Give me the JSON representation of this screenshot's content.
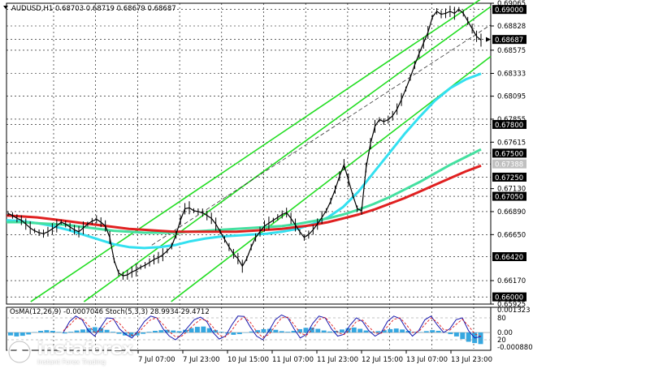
{
  "chart_data": [
    {
      "type": "line",
      "title": "AUDUSD,H1  0.68703 0.68719 0.68679 0.68687",
      "ylim": [
        0.65925,
        0.69065
      ],
      "price_ticks": [
        "0.69065",
        "0.68828",
        "0.68575",
        "0.68333",
        "0.68095",
        "0.67855",
        "0.67615",
        "0.67130",
        "0.66890",
        "0.66650",
        "0.66170",
        "0.65925"
      ],
      "level_labels": [
        {
          "text": "0.69000",
          "value": 0.69,
          "color": "#000000"
        },
        {
          "text": "0.68687",
          "value": 0.68687,
          "color": "#000000"
        },
        {
          "text": "0.67800",
          "value": 0.678,
          "color": "#000000"
        },
        {
          "text": "0.67500",
          "value": 0.675,
          "color": "#000000"
        },
        {
          "text": "0.67388",
          "value": 0.67388,
          "color": "#c0c0c0"
        },
        {
          "text": "0.67250",
          "value": 0.6725,
          "color": "#000000"
        },
        {
          "text": "0.67050",
          "value": 0.6705,
          "color": "#000000"
        },
        {
          "text": "0.66420",
          "value": 0.6642,
          "color": "#000000"
        },
        {
          "text": "0.66000",
          "value": 0.66,
          "color": "#000000"
        }
      ],
      "x_labels": [
        "7 Jul 07:00",
        "7 Jul 23:00",
        "10 Jul 15:00",
        "11 Jul 07:00",
        "11 Jul 23:00",
        "12 Jul 15:00",
        "13 Jul 07:00",
        "13 Jul 23:00"
      ],
      "price_series": [
        0.6687,
        0.6685,
        0.6682,
        0.668,
        0.6676,
        0.6672,
        0.6669,
        0.6667,
        0.6666,
        0.6668,
        0.6671,
        0.6674,
        0.6678,
        0.6676,
        0.6673,
        0.667,
        0.6668,
        0.6672,
        0.6676,
        0.6679,
        0.6681,
        0.6678,
        0.6674,
        0.6662,
        0.6638,
        0.6625,
        0.6622,
        0.6623,
        0.6626,
        0.6628,
        0.6631,
        0.6633,
        0.6636,
        0.6639,
        0.6641,
        0.6644,
        0.6648,
        0.6653,
        0.6665,
        0.668,
        0.6692,
        0.6693,
        0.669,
        0.6689,
        0.6688,
        0.6685,
        0.6682,
        0.6676,
        0.6668,
        0.666,
        0.6652,
        0.6645,
        0.664,
        0.6632,
        0.664,
        0.6652,
        0.6662,
        0.6668,
        0.6674,
        0.6677,
        0.668,
        0.6683,
        0.6686,
        0.6688,
        0.6682,
        0.6675,
        0.6668,
        0.6662,
        0.6665,
        0.667,
        0.6676,
        0.6683,
        0.669,
        0.67,
        0.6712,
        0.6726,
        0.6738,
        0.6722,
        0.6706,
        0.6692,
        0.669,
        0.6735,
        0.676,
        0.6778,
        0.6785,
        0.6783,
        0.6785,
        0.6789,
        0.6796,
        0.6806,
        0.6817,
        0.6829,
        0.6842,
        0.6854,
        0.6865,
        0.6876,
        0.6892,
        0.6898,
        0.6895,
        0.6896,
        0.6898,
        0.6896,
        0.69,
        0.6896,
        0.6888,
        0.688,
        0.6872,
        0.6868
      ],
      "ma_series": [
        {
          "color": "#33e0f0",
          "values": [
            0.668,
            0.6679,
            0.6677,
            0.6674,
            0.667,
            0.6665,
            0.666,
            0.6655,
            0.6652,
            0.6651,
            0.6652,
            0.6654,
            0.6658,
            0.6661,
            0.6663,
            0.6664,
            0.6665,
            0.6666,
            0.6668,
            0.6671,
            0.6676,
            0.6683,
            0.6694,
            0.671,
            0.673,
            0.675,
            0.677,
            0.6788,
            0.6805,
            0.6818,
            0.6827,
            0.6833
          ]
        },
        {
          "color": "#44e0a0",
          "values": [
            0.6678,
            0.6678,
            0.6677,
            0.6676,
            0.6675,
            0.6673,
            0.6671,
            0.6669,
            0.6668,
            0.6667,
            0.6667,
            0.6667,
            0.6668,
            0.6669,
            0.667,
            0.6671,
            0.6672,
            0.6673,
            0.6674,
            0.6676,
            0.6679,
            0.6682,
            0.6686,
            0.6691,
            0.6697,
            0.6704,
            0.6712,
            0.672,
            0.6729,
            0.6738,
            0.6746,
            0.6754
          ]
        },
        {
          "color": "#e02020",
          "values": [
            0.6685,
            0.6684,
            0.6683,
            0.6681,
            0.6679,
            0.6677,
            0.6675,
            0.6673,
            0.6671,
            0.667,
            0.6669,
            0.6668,
            0.6668,
            0.6668,
            0.6668,
            0.6668,
            0.6669,
            0.667,
            0.6671,
            0.6673,
            0.6675,
            0.6678,
            0.6682,
            0.6686,
            0.6691,
            0.6697,
            0.6703,
            0.671,
            0.6717,
            0.6724,
            0.6731,
            0.6737
          ]
        }
      ],
      "channel_lines": [
        {
          "color": "#22dd22",
          "from": [
            0.05,
            0.6595
          ],
          "to": [
            0.98,
            0.6911
          ]
        },
        {
          "color": "#22dd22",
          "from": [
            0.16,
            0.6595
          ],
          "to": [
            1.0,
            0.6903
          ]
        },
        {
          "color": "#22dd22",
          "from": [
            0.34,
            0.6595
          ],
          "to": [
            1.0,
            0.6851
          ]
        }
      ],
      "grid": true
    },
    {
      "type": "bar",
      "title": "OsMA(12,26,9) -0.0007046  Stoch(5,3,3) 28.9934 29.4712",
      "ylim": [
        -0.00088,
        0.001323
      ],
      "axis_labels": [
        "0.001323",
        "80",
        "0.00",
        "20",
        "-0.000880"
      ],
      "osma_values": [
        -0.00018,
        -0.00024,
        -0.0002,
        -0.00012,
        2e-05,
        0.0001,
        0.00014,
        0.0001,
        3e-05,
        -6e-05,
        4e-05,
        0.00012,
        0.00018,
        0.00026,
        0.00032,
        0.00028,
        0.00016,
        4e-05,
        -8e-05,
        -0.00018,
        -0.00024,
        -0.00018,
        -8e-05,
        4e-05,
        0.0001,
        0.00014,
        0.00016,
        0.00012,
        8e-05,
        0.00016,
        0.00026,
        0.00034,
        0.00036,
        0.00026,
        0.00014,
        4e-05,
        -6e-05,
        -0.00014,
        -0.0001,
        -2e-05,
        6e-05,
        0.00014,
        0.0002,
        0.00022,
        0.00016,
        8e-05,
        4e-05,
        0.0001,
        0.0002,
        0.00028,
        0.0003,
        0.00022,
        0.00012,
        6e-05,
        0.0001,
        0.00018,
        0.00026,
        0.0003,
        0.00022,
        0.00012,
        4e-05,
        8e-05,
        0.00014,
        0.0002,
        0.00024,
        0.00018,
        0.0001,
        4e-05,
        2e-05,
        8e-05,
        0.00014,
        0.0001,
        2e-05,
        -0.0001,
        -0.00024,
        -0.0004,
        -0.00056,
        -0.00064,
        -0.0007
      ],
      "stoch_main": [
        40,
        70,
        85,
        75,
        45,
        30,
        55,
        80,
        78,
        50,
        35,
        25,
        45,
        70,
        85,
        80,
        50,
        30,
        20,
        35,
        55,
        75,
        82,
        70,
        40,
        22,
        30,
        60,
        85,
        84,
        55,
        30,
        20,
        45,
        75,
        88,
        80,
        50,
        25,
        35,
        65,
        85,
        80,
        50,
        30,
        35,
        60,
        80,
        70,
        45,
        30,
        40,
        70,
        85,
        78,
        50,
        30,
        45,
        75,
        85,
        60,
        40,
        50,
        75,
        80,
        45,
        25,
        29
      ],
      "stoch_signal": [
        45,
        60,
        78,
        78,
        60,
        40,
        45,
        65,
        76,
        65,
        45,
        32,
        38,
        58,
        75,
        80,
        62,
        42,
        28,
        30,
        45,
        62,
        76,
        74,
        55,
        32,
        28,
        45,
        70,
        82,
        68,
        42,
        26,
        35,
        58,
        80,
        82,
        62,
        38,
        32,
        50,
        75,
        82,
        62,
        40,
        34,
        48,
        70,
        74,
        56,
        38,
        38,
        56,
        76,
        80,
        62,
        40,
        42,
        62,
        80,
        68,
        48,
        46,
        62,
        76,
        58,
        36,
        29
      ]
    }
  ],
  "logo": {
    "name": "instaforex",
    "tagline": "Instant Forex Trading"
  }
}
